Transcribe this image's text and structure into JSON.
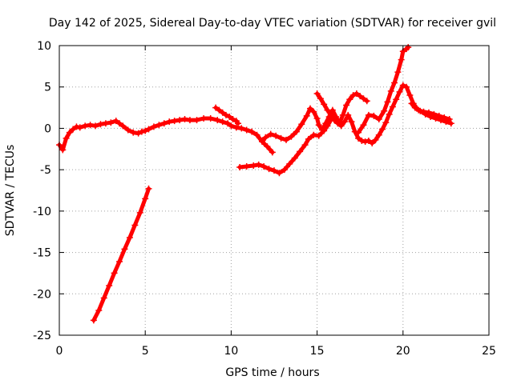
{
  "chart_data": {
    "type": "scatter",
    "title": "Day 142 of 2025, Sidereal Day-to-day VTEC variation (SDTVAR) for receiver gvil",
    "xlabel": "GPS time / hours",
    "ylabel": "SDTVAR / TECUs",
    "xlim": [
      0,
      25
    ],
    "ylim": [
      -25,
      10
    ],
    "xticks": [
      0,
      5,
      10,
      15,
      20,
      25
    ],
    "yticks": [
      -25,
      -20,
      -15,
      -10,
      -5,
      0,
      5,
      10
    ],
    "grid": true,
    "marker_color": "#ff0000",
    "series": [
      {
        "name": "trace-1",
        "points": [
          [
            0.0,
            -2.0
          ],
          [
            0.2,
            -2.6
          ],
          [
            0.4,
            -1.2
          ],
          [
            0.6,
            -0.5
          ],
          [
            0.8,
            -0.1
          ],
          [
            1.0,
            0.2
          ],
          [
            1.2,
            0.1
          ],
          [
            1.5,
            0.3
          ],
          [
            1.8,
            0.4
          ],
          [
            2.1,
            0.3
          ],
          [
            2.4,
            0.5
          ],
          [
            2.7,
            0.6
          ],
          [
            3.0,
            0.7
          ],
          [
            3.3,
            0.9
          ],
          [
            3.5,
            0.6
          ],
          [
            3.7,
            0.3
          ],
          [
            4.0,
            -0.2
          ],
          [
            4.3,
            -0.5
          ],
          [
            4.6,
            -0.6
          ],
          [
            4.8,
            -0.4
          ],
          [
            5.0,
            -0.3
          ],
          [
            5.2,
            -0.1
          ],
          [
            5.5,
            0.2
          ],
          [
            5.8,
            0.4
          ],
          [
            6.1,
            0.6
          ],
          [
            6.4,
            0.8
          ],
          [
            6.7,
            0.9
          ],
          [
            7.0,
            1.0
          ],
          [
            7.3,
            1.1
          ],
          [
            7.6,
            1.0
          ],
          [
            8.0,
            1.0
          ],
          [
            8.4,
            1.2
          ],
          [
            8.8,
            1.2
          ],
          [
            9.2,
            1.0
          ],
          [
            9.5,
            0.8
          ],
          [
            9.8,
            0.6
          ],
          [
            10.0,
            0.3
          ],
          [
            10.3,
            0.1
          ],
          [
            10.6,
            0.0
          ],
          [
            10.9,
            -0.2
          ],
          [
            11.2,
            -0.4
          ],
          [
            11.5,
            -0.8
          ],
          [
            11.8,
            -1.6
          ],
          [
            12.1,
            -2.2
          ],
          [
            12.4,
            -2.9
          ]
        ]
      },
      {
        "name": "trace-2",
        "points": [
          [
            9.1,
            2.5
          ],
          [
            9.3,
            2.2
          ],
          [
            9.5,
            1.9
          ],
          [
            9.7,
            1.6
          ],
          [
            9.9,
            1.4
          ],
          [
            10.1,
            1.1
          ],
          [
            10.3,
            0.9
          ],
          [
            10.4,
            0.6
          ]
        ]
      },
      {
        "name": "trace-3",
        "points": [
          [
            11.8,
            -1.5
          ],
          [
            12.0,
            -1.1
          ],
          [
            12.3,
            -0.7
          ],
          [
            12.6,
            -0.9
          ],
          [
            12.9,
            -1.2
          ],
          [
            13.2,
            -1.4
          ],
          [
            13.5,
            -1.0
          ],
          [
            13.8,
            -0.4
          ],
          [
            14.1,
            0.5
          ],
          [
            14.4,
            1.5
          ],
          [
            14.6,
            2.4
          ],
          [
            14.8,
            2.0
          ],
          [
            15.0,
            1.2
          ],
          [
            15.1,
            0.4
          ],
          [
            15.3,
            -0.2
          ],
          [
            15.5,
            0.6
          ],
          [
            15.7,
            1.4
          ],
          [
            15.9,
            2.2
          ],
          [
            16.1,
            1.4
          ],
          [
            16.3,
            0.6
          ],
          [
            16.5,
            1.6
          ],
          [
            16.7,
            2.8
          ],
          [
            16.9,
            3.5
          ],
          [
            17.1,
            4.0
          ],
          [
            17.3,
            4.2
          ],
          [
            17.5,
            3.9
          ],
          [
            17.7,
            3.6
          ],
          [
            17.9,
            3.3
          ]
        ]
      },
      {
        "name": "trace-4",
        "points": [
          [
            10.5,
            -4.7
          ],
          [
            10.9,
            -4.6
          ],
          [
            11.3,
            -4.5
          ],
          [
            11.6,
            -4.4
          ],
          [
            11.9,
            -4.6
          ],
          [
            12.2,
            -4.9
          ],
          [
            12.5,
            -5.1
          ],
          [
            12.8,
            -5.4
          ],
          [
            13.1,
            -5.0
          ],
          [
            13.4,
            -4.3
          ],
          [
            13.7,
            -3.6
          ],
          [
            14.0,
            -2.8
          ],
          [
            14.3,
            -2.0
          ],
          [
            14.5,
            -1.3
          ],
          [
            14.8,
            -0.8
          ],
          [
            15.1,
            -0.9
          ],
          [
            15.4,
            -0.3
          ],
          [
            15.6,
            0.3
          ],
          [
            15.8,
            1.0
          ]
        ]
      },
      {
        "name": "trace-5",
        "points": [
          [
            15.0,
            4.2
          ],
          [
            15.2,
            3.6
          ],
          [
            15.4,
            2.9
          ],
          [
            15.6,
            2.2
          ],
          [
            15.8,
            1.6
          ],
          [
            16.0,
            1.0
          ],
          [
            16.2,
            0.6
          ],
          [
            16.4,
            0.3
          ],
          [
            16.6,
            0.8
          ],
          [
            16.8,
            1.6
          ],
          [
            17.0,
            0.8
          ],
          [
            17.2,
            -0.4
          ],
          [
            17.4,
            -1.2
          ],
          [
            17.6,
            -1.5
          ],
          [
            17.8,
            -1.6
          ],
          [
            18.0,
            -1.5
          ],
          [
            18.2,
            -1.8
          ],
          [
            18.4,
            -1.4
          ],
          [
            18.6,
            -0.8
          ],
          [
            18.8,
            -0.1
          ],
          [
            19.0,
            0.7
          ],
          [
            19.2,
            1.7
          ],
          [
            19.4,
            2.6
          ],
          [
            19.6,
            3.5
          ],
          [
            19.8,
            4.4
          ],
          [
            20.0,
            5.2
          ],
          [
            20.2,
            5.0
          ],
          [
            20.4,
            4.0
          ],
          [
            20.6,
            3.0
          ],
          [
            20.8,
            2.4
          ],
          [
            21.0,
            2.1
          ],
          [
            21.3,
            1.7
          ],
          [
            21.6,
            1.4
          ],
          [
            21.9,
            1.2
          ],
          [
            22.2,
            1.0
          ],
          [
            22.5,
            0.8
          ],
          [
            22.8,
            0.6
          ]
        ]
      },
      {
        "name": "trace-6",
        "points": [
          [
            17.4,
            -0.5
          ],
          [
            17.7,
            0.4
          ],
          [
            18.0,
            1.6
          ],
          [
            18.3,
            1.5
          ],
          [
            18.6,
            1.1
          ],
          [
            18.9,
            2.1
          ],
          [
            19.1,
            3.2
          ],
          [
            19.3,
            4.5
          ],
          [
            19.5,
            5.5
          ],
          [
            19.7,
            6.8
          ],
          [
            19.9,
            8.3
          ],
          [
            20.0,
            9.3
          ],
          [
            20.2,
            9.6
          ],
          [
            20.3,
            9.8
          ]
        ]
      },
      {
        "name": "trace-7",
        "points": [
          [
            20.5,
            3.0
          ],
          [
            20.7,
            2.5
          ],
          [
            20.9,
            2.2
          ],
          [
            21.2,
            2.0
          ],
          [
            21.5,
            1.9
          ],
          [
            21.8,
            1.7
          ],
          [
            22.1,
            1.5
          ],
          [
            22.4,
            1.3
          ],
          [
            22.7,
            1.1
          ]
        ]
      },
      {
        "name": "trace-8",
        "points": [
          [
            2.0,
            -23.2
          ],
          [
            2.3,
            -22.0
          ],
          [
            2.6,
            -20.5
          ],
          [
            2.9,
            -19.0
          ],
          [
            3.2,
            -17.5
          ],
          [
            3.5,
            -16.1
          ],
          [
            3.8,
            -14.6
          ],
          [
            4.1,
            -13.2
          ],
          [
            4.4,
            -11.7
          ],
          [
            4.7,
            -10.2
          ],
          [
            5.0,
            -8.5
          ],
          [
            5.2,
            -7.3
          ]
        ]
      }
    ]
  }
}
